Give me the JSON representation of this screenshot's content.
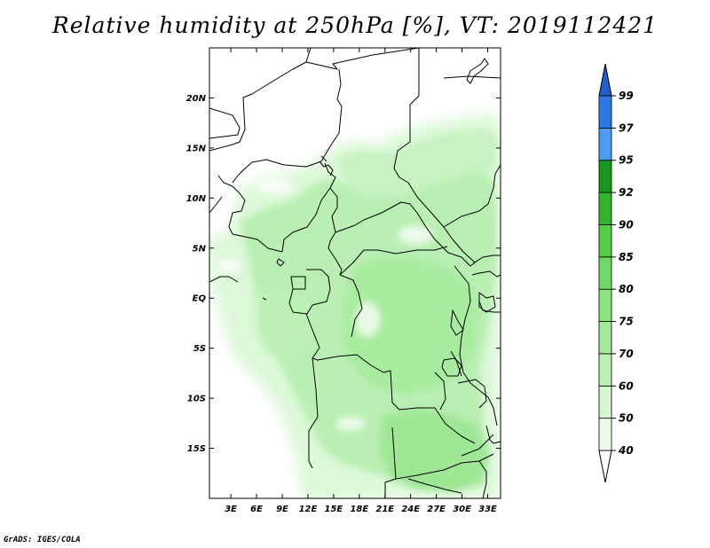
{
  "title": "Relative humidity at 250hPa [%], VT: 2019112421",
  "credit": "GrADS: IGES/COLA",
  "map": {
    "lon_labels": [
      "3E",
      "6E",
      "9E",
      "12E",
      "15E",
      "18E",
      "21E",
      "24E",
      "27E",
      "30E",
      "33E"
    ],
    "lon_values": [
      3,
      6,
      9,
      12,
      15,
      18,
      21,
      24,
      27,
      30,
      33
    ],
    "lat_labels": [
      "20N",
      "15N",
      "10N",
      "5N",
      "EQ",
      "5S",
      "10S",
      "15S"
    ],
    "lat_values": [
      20,
      15,
      10,
      5,
      0,
      -5,
      -10,
      -15
    ],
    "lon_range": [
      0.5,
      34.5
    ],
    "lat_range": [
      -20,
      25
    ]
  },
  "colorbar": {
    "levels": [
      {
        "label": "40",
        "color": "#edfbec"
      },
      {
        "label": "50",
        "color": "#d6f7d2"
      },
      {
        "label": "60",
        "color": "#bdf1b6"
      },
      {
        "label": "70",
        "color": "#a3eb9a"
      },
      {
        "label": "75",
        "color": "#8ae57f"
      },
      {
        "label": "80",
        "color": "#6fdb63"
      },
      {
        "label": "85",
        "color": "#52cf48"
      },
      {
        "label": "90",
        "color": "#30b52c"
      },
      {
        "label": "92",
        "color": "#17981a"
      },
      {
        "label": "95",
        "color": "#4b9cf2"
      },
      {
        "label": "97",
        "color": "#2a7ae6"
      },
      {
        "label": "99",
        "color": "#1f5fd0"
      }
    ],
    "top_color": "#1f5fd0",
    "bottom_color": "#ffffff"
  }
}
